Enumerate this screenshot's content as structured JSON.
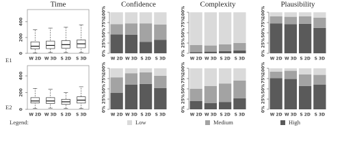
{
  "chart_data": [
    {
      "type": "box",
      "title": "Time",
      "categories": [
        "W 2D",
        "W 3D",
        "S 2D",
        "S 3D"
      ],
      "min": [
        5,
        10,
        10,
        10
      ],
      "q1": [
        55,
        60,
        65,
        70
      ],
      "median": [
        90,
        100,
        110,
        120
      ],
      "q3": [
        145,
        155,
        160,
        170
      ],
      "max": [
        300,
        320,
        330,
        360
      ],
      "ylim": [
        0,
        520
      ],
      "yticks": [
        0,
        200,
        400
      ]
    },
    {
      "type": "stacked_bar",
      "title": "Confidence",
      "categories": [
        "W 2D",
        "W 3D",
        "S 2D",
        "S 3D"
      ],
      "series": [
        {
          "name": "Low",
          "color": "#dadada",
          "values": [
            29,
            27,
            27,
            30
          ]
        },
        {
          "name": "Medium",
          "color": "#a3a3a3",
          "values": [
            25,
            28,
            45,
            37
          ]
        },
        {
          "name": "High",
          "color": "#5a5a5a",
          "values": [
            46,
            45,
            28,
            33
          ]
        }
      ],
      "ylim": [
        0,
        100
      ],
      "yticks": [
        {
          "value": 0,
          "label": "0%"
        },
        {
          "value": 25,
          "label": "25%"
        },
        {
          "value": 50,
          "label": "50%"
        },
        {
          "value": 75,
          "label": "75%"
        },
        {
          "value": 100,
          "label": "100%"
        }
      ]
    },
    {
      "type": "stacked_bar",
      "title": "Complexity",
      "categories": [
        "W 2D",
        "W 3D",
        "S 2D",
        "S 3D"
      ],
      "series": [
        {
          "name": "Low",
          "color": "#dadada",
          "values": [
            80,
            81,
            78,
            75
          ]
        },
        {
          "name": "Medium",
          "color": "#a3a3a3",
          "values": [
            17,
            15,
            17,
            18
          ]
        },
        {
          "name": "High",
          "color": "#5a5a5a",
          "values": [
            3,
            4,
            5,
            7
          ]
        }
      ],
      "ylim": [
        0,
        100
      ],
      "yticks": [
        {
          "value": 0,
          "label": "0%"
        },
        {
          "value": 25,
          "label": "25%"
        },
        {
          "value": 50,
          "label": "50%"
        },
        {
          "value": 75,
          "label": "75%"
        },
        {
          "value": 100,
          "label": "100%"
        }
      ]
    },
    {
      "type": "stacked_bar",
      "title": "Plausibility",
      "categories": [
        "W 2D",
        "W 3D",
        "S 2D",
        "S 3D"
      ],
      "series": [
        {
          "name": "Low",
          "color": "#dadada",
          "values": [
            10,
            11,
            10,
            13
          ]
        },
        {
          "name": "Medium",
          "color": "#a3a3a3",
          "values": [
            17,
            18,
            18,
            25
          ]
        },
        {
          "name": "High",
          "color": "#5a5a5a",
          "values": [
            73,
            71,
            72,
            62
          ]
        }
      ],
      "ylim": [
        0,
        100
      ],
      "yticks": [
        {
          "value": 0,
          "label": "0%"
        },
        {
          "value": 25,
          "label": "25%"
        },
        {
          "value": 50,
          "label": "50%"
        },
        {
          "value": 75,
          "label": "75%"
        },
        {
          "value": 100,
          "label": "100%"
        }
      ]
    },
    {
      "type": "box",
      "categories": [
        "W 2D",
        "W 3D",
        "S 2D",
        "S 3D"
      ],
      "min": [
        10,
        15,
        10,
        10
      ],
      "q1": [
        75,
        70,
        60,
        75
      ],
      "median": [
        100,
        100,
        90,
        110
      ],
      "q3": [
        140,
        140,
        120,
        150
      ],
      "max": [
        250,
        240,
        200,
        270
      ],
      "ylim": [
        0,
        490
      ],
      "yticks": [
        0,
        200,
        400
      ]
    },
    {
      "type": "stacked_bar",
      "categories": [
        "W 2D",
        "W 3D",
        "S 2D",
        "S 3D"
      ],
      "series": [
        {
          "name": "Low",
          "color": "#dadada",
          "values": [
            22,
            12,
            10,
            18
          ]
        },
        {
          "name": "Medium",
          "color": "#a3a3a3",
          "values": [
            38,
            28,
            28,
            30
          ]
        },
        {
          "name": "High",
          "color": "#5a5a5a",
          "values": [
            40,
            60,
            62,
            52
          ]
        }
      ],
      "ylim": [
        0,
        100
      ],
      "yticks": [
        {
          "value": 0,
          "label": "0%"
        },
        {
          "value": 25,
          "label": "25%"
        },
        {
          "value": 50,
          "label": "50%"
        },
        {
          "value": 75,
          "label": "75%"
        },
        {
          "value": 100,
          "label": "100%"
        }
      ]
    },
    {
      "type": "stacked_bar",
      "categories": [
        "W 2D",
        "W 3D",
        "S 2D",
        "S 3D"
      ],
      "series": [
        {
          "name": "Low",
          "color": "#dadada",
          "values": [
            50,
            43,
            37,
            30
          ]
        },
        {
          "name": "Medium",
          "color": "#a3a3a3",
          "values": [
            30,
            42,
            45,
            43
          ]
        },
        {
          "name": "High",
          "color": "#5a5a5a",
          "values": [
            20,
            15,
            18,
            27
          ]
        }
      ],
      "ylim": [
        0,
        100
      ],
      "yticks": [
        {
          "value": 0,
          "label": "0%"
        },
        {
          "value": 25,
          "label": "25%"
        },
        {
          "value": 50,
          "label": "50%"
        },
        {
          "value": 75,
          "label": "75%"
        },
        {
          "value": 100,
          "label": "100%"
        }
      ]
    },
    {
      "type": "stacked_bar",
      "categories": [
        "W 2D",
        "W 3D",
        "S 2D",
        "S 3D"
      ],
      "series": [
        {
          "name": "Low",
          "color": "#dadada",
          "values": [
            8,
            6,
            15,
            16
          ]
        },
        {
          "name": "Medium",
          "color": "#a3a3a3",
          "values": [
            16,
            20,
            28,
            24
          ]
        },
        {
          "name": "High",
          "color": "#5a5a5a",
          "values": [
            76,
            74,
            57,
            60
          ]
        }
      ],
      "ylim": [
        0,
        100
      ],
      "yticks": [
        {
          "value": 0,
          "label": "0%"
        },
        {
          "value": 25,
          "label": "25%"
        },
        {
          "value": 50,
          "label": "50%"
        },
        {
          "value": 75,
          "label": "75%"
        },
        {
          "value": 100,
          "label": "100%"
        }
      ]
    }
  ],
  "row_labels": [
    "E1",
    "E2"
  ],
  "legend_title": "Legend:"
}
